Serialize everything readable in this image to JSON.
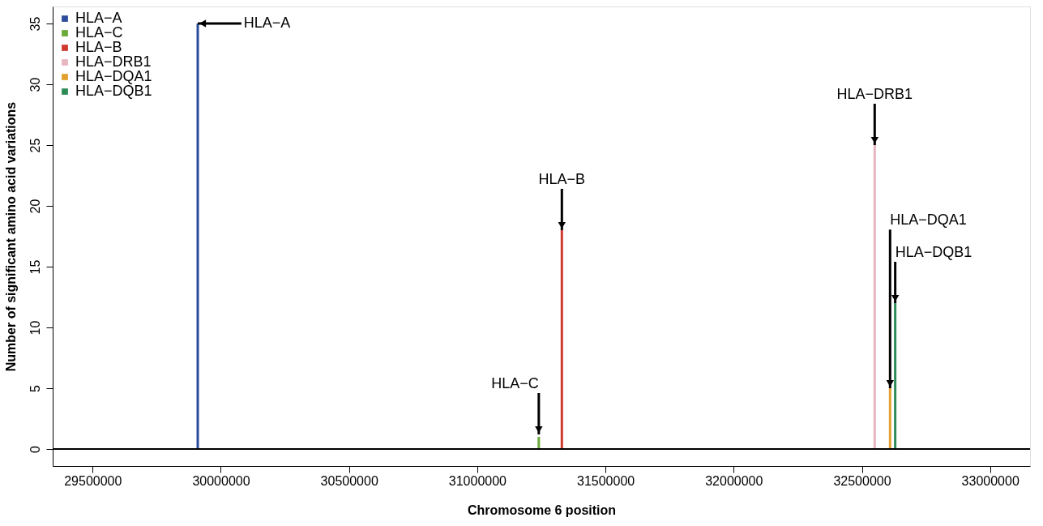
{
  "chart_data": {
    "type": "bar",
    "xlabel": "Chromosome 6 position",
    "ylabel": "Number of significant amino acid variations",
    "series": [
      {
        "name": "HLA−A",
        "color": "#2b4b9b",
        "x": [
          29910000
        ],
        "values": [
          35
        ]
      },
      {
        "name": "HLA−C",
        "color": "#6aaa3a",
        "x": [
          31240000
        ],
        "values": [
          1
        ]
      },
      {
        "name": "HLA−B",
        "color": "#d03a2e",
        "x": [
          31330000
        ],
        "values": [
          18
        ]
      },
      {
        "name": "HLA−DRB1",
        "color": "#e8b4c0",
        "x": [
          32550000
        ],
        "values": [
          25
        ]
      },
      {
        "name": "HLA−DQA1",
        "color": "#e2a12f",
        "x": [
          32610000
        ],
        "values": [
          5
        ]
      },
      {
        "name": "HLA−DQB1",
        "color": "#2e8b57",
        "x": [
          32630000
        ],
        "values": [
          12
        ]
      }
    ],
    "annotations": [
      {
        "text": "HLA−A",
        "x": 29910000,
        "y": 35
      },
      {
        "text": "HLA−C",
        "x": 31240000,
        "y": 1.2
      },
      {
        "text": "HLA−B",
        "x": 31330000,
        "y": 18
      },
      {
        "text": "HLA−DRB1",
        "x": 32550000,
        "y": 25
      },
      {
        "text": "HLA−DQA1",
        "x": 32610000,
        "y": 5
      },
      {
        "text": "HLA−DQB1",
        "x": 32630000,
        "y": 12
      }
    ],
    "ref_lines": [
      {
        "axis": "y",
        "value": 0,
        "color": "#000000"
      }
    ],
    "xlim": [
      29360000,
      33140000
    ],
    "xticks": [
      29500000,
      30000000,
      30500000,
      31000000,
      31500000,
      32000000,
      32500000,
      33000000
    ],
    "ylim": [
      -1.4,
      36.4
    ],
    "yticks": [
      0,
      5,
      10,
      15,
      20,
      25,
      30,
      35
    ],
    "grid": false,
    "legend": "top left"
  }
}
